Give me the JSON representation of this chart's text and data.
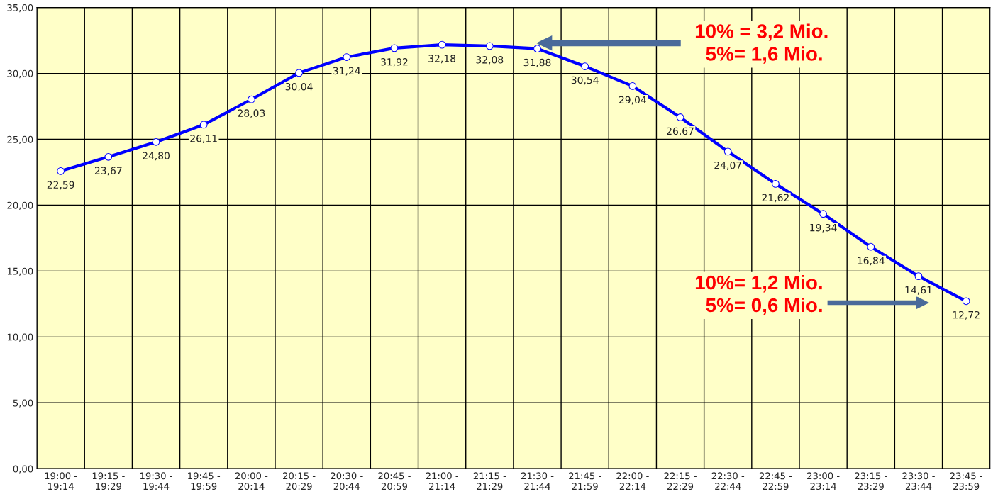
{
  "chart_data": {
    "type": "line",
    "categories": [
      "19:00 -\n19:14",
      "19:15 -\n19:29",
      "19:30 -\n19:44",
      "19:45 -\n19:59",
      "20:00 -\n20:14",
      "20:15 -\n20:29",
      "20:30 -\n20:44",
      "20:45 -\n20:59",
      "21:00 -\n21:14",
      "21:15 -\n21:29",
      "21:30 -\n21:44",
      "21:45 -\n21:59",
      "22:00 -\n22:14",
      "22:15 -\n22:29",
      "22:30 -\n22:44",
      "22:45 -\n22:59",
      "23:00 -\n23:14",
      "23:15 -\n23:29",
      "23:30 -\n23:44",
      "23:45 -\n23:59"
    ],
    "series": [
      {
        "color": "#0000ff",
        "values": [
          22.59,
          23.67,
          24.8,
          26.11,
          28.03,
          30.04,
          31.24,
          31.92,
          32.18,
          32.08,
          31.88,
          30.54,
          29.04,
          26.67,
          24.07,
          21.62,
          19.34,
          16.84,
          14.61,
          12.72
        ],
        "value_labels": [
          "22,59",
          "23,67",
          "24,80",
          "26,11",
          "28,03",
          "30,04",
          "31,24",
          "31,92",
          "32,18",
          "32,08",
          "31,88",
          "30,54",
          "29,04",
          "26,67",
          "24,07",
          "21,62",
          "19,34",
          "16,84",
          "14,61",
          "12,72"
        ]
      }
    ],
    "ylim": [
      0,
      35
    ],
    "yticks": [
      {
        "value": 0,
        "label": "0,00"
      },
      {
        "value": 5,
        "label": "5,00"
      },
      {
        "value": 10,
        "label": "10,00"
      },
      {
        "value": 15,
        "label": "15,00"
      },
      {
        "value": 20,
        "label": "20,00"
      },
      {
        "value": 25,
        "label": "25,00"
      },
      {
        "value": 30,
        "label": "30,00"
      },
      {
        "value": 35,
        "label": "35,00"
      }
    ],
    "grid": true,
    "marker": "circle",
    "line_style": "solid",
    "annotations": [
      "10% = 3,2 Mio.\n  5%= 1,6 Mio.",
      "10%= 1,2 Mio.\n  5%= 0,6 Mio."
    ]
  }
}
